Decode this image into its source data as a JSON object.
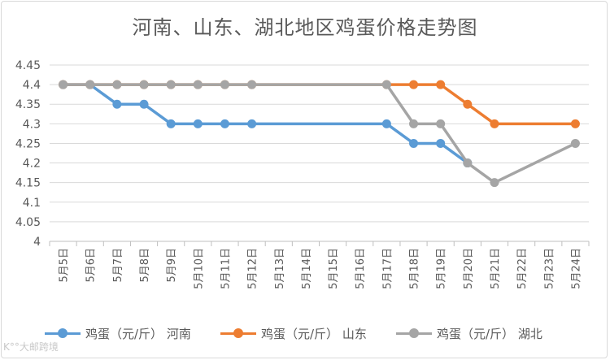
{
  "chart_data": {
    "type": "line",
    "title": "河南、山东、湖北地区鸡蛋价格走势图",
    "categories": [
      "5月5日",
      "5月6日",
      "5月7日",
      "5月8日",
      "5月9日",
      "5月10日",
      "5月11日",
      "5月12日",
      "5月13日",
      "5月14日",
      "5月15日",
      "5月16日",
      "5月17日",
      "5月18日",
      "5月19日",
      "5月20日",
      "5月21日",
      "5月22日",
      "5月23日",
      "5月24日"
    ],
    "ylim": [
      4,
      4.45
    ],
    "yticks": [
      "4",
      "4.05",
      "4.1",
      "4.15",
      "4.2",
      "4.25",
      "4.3",
      "4.35",
      "4.4",
      "4.45"
    ],
    "series": [
      {
        "name": "鸡蛋（元/斤） 河南",
        "color": "#5b9bd5",
        "values": [
          4.4,
          4.4,
          4.35,
          4.35,
          4.3,
          4.3,
          4.3,
          4.3,
          null,
          null,
          null,
          null,
          4.3,
          4.25,
          4.25,
          4.2,
          null,
          null,
          null,
          null
        ]
      },
      {
        "name": "鸡蛋（元/斤） 山东",
        "color": "#ed7d31",
        "values": [
          4.4,
          4.4,
          4.4,
          4.4,
          4.4,
          4.4,
          4.4,
          4.4,
          null,
          null,
          null,
          null,
          4.4,
          4.4,
          4.4,
          4.35,
          4.3,
          null,
          null,
          4.3
        ]
      },
      {
        "name": "鸡蛋（元/斤） 湖北",
        "color": "#a5a5a5",
        "values": [
          4.4,
          4.4,
          4.4,
          4.4,
          4.4,
          4.4,
          4.4,
          4.4,
          null,
          null,
          null,
          null,
          4.4,
          4.3,
          4.3,
          4.2,
          4.15,
          null,
          null,
          4.25
        ]
      }
    ]
  },
  "watermark": "K°°大邮跨境"
}
